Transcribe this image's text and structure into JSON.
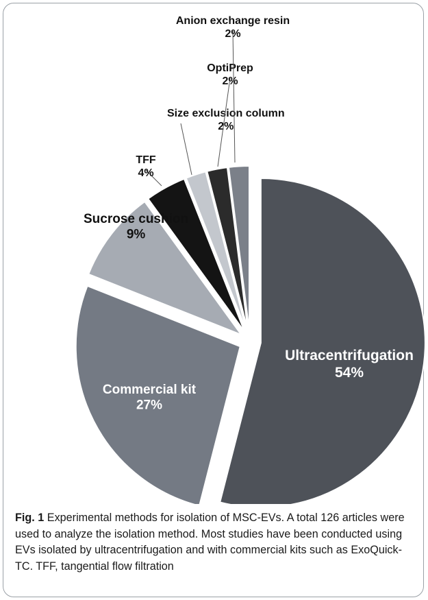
{
  "chart_data": {
    "type": "pie",
    "title": "",
    "slices": [
      {
        "label": "Ultracentrifugation",
        "value": 54,
        "value_label": "54%",
        "color": "#4e5259"
      },
      {
        "label": "Commercial kit",
        "value": 27,
        "value_label": "27%",
        "color": "#747a84"
      },
      {
        "label": "Sucrose cushion",
        "value": 9,
        "value_label": "9%",
        "color": "#a6abb3"
      },
      {
        "label": "TFF",
        "value": 4,
        "value_label": "4%",
        "color": "#141414"
      },
      {
        "label": "Size exclusion column",
        "value": 2,
        "value_label": "2%",
        "color": "#c3c7cd"
      },
      {
        "label": "OptiPrep",
        "value": 2,
        "value_label": "2%",
        "color": "#2b2b2b"
      },
      {
        "label": "Anion exchange resin",
        "value": 2,
        "value_label": "2%",
        "color": "#7b8089"
      }
    ],
    "label_colors": {
      "inside": "#ffffff",
      "outside": "#111111",
      "leader": "#555555"
    }
  },
  "caption": {
    "fig_label": "Fig. 1",
    "text": " Experimental methods for isolation of MSC-EVs. A total 126 articles were used to analyze the isolation method. Most studies have been conducted using EVs isolated by ultracentrifugation and with commercial kits such as ExoQuick-TC. TFF, tangential flow filtration"
  }
}
